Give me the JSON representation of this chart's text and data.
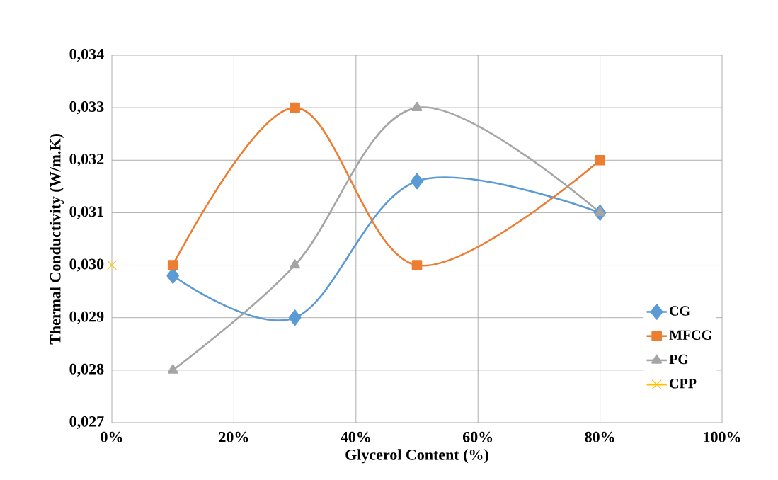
{
  "chart_data": {
    "type": "line",
    "xlabel": "Glycerol Content (%)",
    "ylabel": "Thermal Conductivity (W/m.K)",
    "series": [
      {
        "name": "CG",
        "color": "#5b9bd5",
        "marker": "diamond",
        "x": [
          10,
          30,
          50,
          80
        ],
        "values": [
          0.0298,
          0.029,
          0.0316,
          0.031
        ]
      },
      {
        "name": "MFCG",
        "color": "#ed7d31",
        "marker": "square",
        "x": [
          10,
          30,
          50,
          80
        ],
        "values": [
          0.03,
          0.033,
          0.03,
          0.032
        ]
      },
      {
        "name": "PG",
        "color": "#a5a5a5",
        "marker": "triangle",
        "x": [
          10,
          30,
          50,
          80
        ],
        "values": [
          0.028,
          0.03,
          0.033,
          0.031
        ]
      },
      {
        "name": "CPP",
        "color": "#ffc000",
        "marker": "cross",
        "x": [
          0
        ],
        "values": [
          0.03
        ]
      }
    ],
    "xlim": [
      0,
      100
    ],
    "xticks": [
      {
        "value": 0,
        "label": "0%"
      },
      {
        "value": 20,
        "label": "20%"
      },
      {
        "value": 40,
        "label": "40%"
      },
      {
        "value": 60,
        "label": "60%"
      },
      {
        "value": 80,
        "label": "80%"
      },
      {
        "value": 100,
        "label": "100%"
      }
    ],
    "ylim": [
      0.027,
      0.034
    ],
    "yticks": [
      {
        "value": 0.027,
        "label": "0,027"
      },
      {
        "value": 0.028,
        "label": "0,028"
      },
      {
        "value": 0.029,
        "label": "0,029"
      },
      {
        "value": 0.03,
        "label": "0,030"
      },
      {
        "value": 0.031,
        "label": "0,031"
      },
      {
        "value": 0.032,
        "label": "0,032"
      },
      {
        "value": 0.033,
        "label": "0,033"
      },
      {
        "value": 0.034,
        "label": "0,034"
      }
    ],
    "grid": true,
    "legend": "right"
  }
}
